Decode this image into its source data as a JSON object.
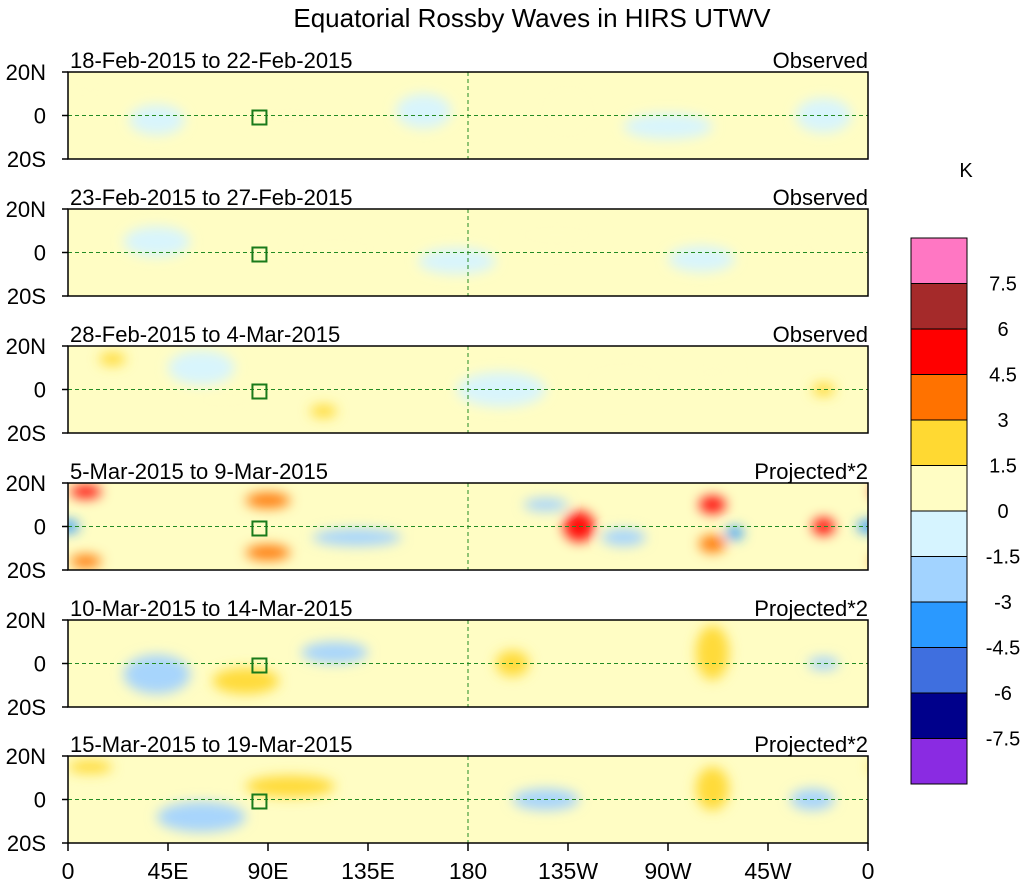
{
  "chart_data": {
    "type": "heatmap",
    "title": "Equatorial Rossby Waves in HIRS UTWV",
    "unit": "K",
    "x_ticks": [
      "0",
      "45E",
      "90E",
      "135E",
      "180",
      "135W",
      "90W",
      "45W",
      "0"
    ],
    "y_ticks": [
      "20N",
      "0",
      "20S"
    ],
    "lon_range": [
      0,
      360
    ],
    "lat_range": [
      -20,
      20
    ],
    "panels": [
      {
        "date_label": "18-Feb-2015 to 22-Feb-2015",
        "kind": "Observed"
      },
      {
        "date_label": "23-Feb-2015 to 27-Feb-2015",
        "kind": "Observed"
      },
      {
        "date_label": "28-Feb-2015 to 4-Mar-2015",
        "kind": "Observed"
      },
      {
        "date_label": "5-Mar-2015 to 9-Mar-2015",
        "kind": "Projected*2"
      },
      {
        "date_label": "10-Mar-2015 to 14-Mar-2015",
        "kind": "Projected*2"
      },
      {
        "date_label": "15-Mar-2015 to 19-Mar-2015",
        "kind": "Projected*2"
      }
    ],
    "colorbar": {
      "levels": [
        "7.5",
        "6",
        "4.5",
        "3",
        "1.5",
        "0",
        "-1.5",
        "-3",
        "-4.5",
        "-6",
        "-7.5"
      ],
      "colors": [
        "#ff77c3",
        "#a52a2a",
        "#ff0000",
        "#ff7200",
        "#ffd932",
        "#fffdc4",
        "#d6f4ff",
        "#a2d3ff",
        "#2a99ff",
        "#3f6fdf",
        "#00008b",
        "#8a2be2"
      ]
    },
    "anomalies": [
      [
        {
          "lon": 10,
          "lat": 12,
          "w": 30,
          "h": 8,
          "v": 0.8
        },
        {
          "lon": 100,
          "lat": 0,
          "w": 45,
          "h": 12,
          "v": 0.8
        },
        {
          "lon": 225,
          "lat": 2,
          "w": 30,
          "h": 30,
          "v": 0.7
        },
        {
          "lon": 160,
          "lat": 2,
          "w": 25,
          "h": 16,
          "v": -0.8
        },
        {
          "lon": 40,
          "lat": -2,
          "w": 25,
          "h": 14,
          "v": -0.8
        },
        {
          "lon": 270,
          "lat": -5,
          "w": 40,
          "h": 12,
          "v": -0.7
        },
        {
          "lon": 340,
          "lat": 0,
          "w": 25,
          "h": 16,
          "v": -0.7
        }
      ],
      [
        {
          "lon": 120,
          "lat": 2,
          "w": 40,
          "h": 14,
          "v": 0.8
        },
        {
          "lon": 220,
          "lat": 8,
          "w": 40,
          "h": 14,
          "v": 0.7
        },
        {
          "lon": 330,
          "lat": 0,
          "w": 20,
          "h": 14,
          "v": 0.8
        },
        {
          "lon": 40,
          "lat": 5,
          "w": 30,
          "h": 14,
          "v": -0.8
        },
        {
          "lon": 175,
          "lat": -4,
          "w": 35,
          "h": 12,
          "v": -0.8
        },
        {
          "lon": 285,
          "lat": -3,
          "w": 30,
          "h": 12,
          "v": -0.8
        }
      ],
      [
        {
          "lon": 20,
          "lat": 14,
          "w": 12,
          "h": 6,
          "v": 1.6
        },
        {
          "lon": 115,
          "lat": -10,
          "w": 12,
          "h": 6,
          "v": 1.6
        },
        {
          "lon": 340,
          "lat": 0,
          "w": 10,
          "h": 6,
          "v": 2.2
        },
        {
          "lon": 60,
          "lat": 10,
          "w": 30,
          "h": 16,
          "v": -0.8
        },
        {
          "lon": 70,
          "lat": -5,
          "w": 30,
          "h": 12,
          "v": 0.9
        },
        {
          "lon": 195,
          "lat": 0,
          "w": 40,
          "h": 16,
          "v": -0.9
        },
        {
          "lon": 250,
          "lat": 5,
          "w": 40,
          "h": 20,
          "v": 0.7
        },
        {
          "lon": 290,
          "lat": 8,
          "w": 20,
          "h": 10,
          "v": 0.9
        }
      ],
      [
        {
          "lon": 8,
          "lat": 16,
          "w": 14,
          "h": 6,
          "v": 4.5
        },
        {
          "lon": 8,
          "lat": -16,
          "w": 14,
          "h": 6,
          "v": 4.0
        },
        {
          "lon": 90,
          "lat": 12,
          "w": 20,
          "h": 7,
          "v": 4.0
        },
        {
          "lon": 90,
          "lat": -12,
          "w": 20,
          "h": 7,
          "v": 4.0
        },
        {
          "lon": 230,
          "lat": 0,
          "w": 14,
          "h": 14,
          "v": 5.0
        },
        {
          "lon": 290,
          "lat": 10,
          "w": 12,
          "h": 8,
          "v": 4.5
        },
        {
          "lon": 290,
          "lat": -8,
          "w": 12,
          "h": 8,
          "v": 4.0
        },
        {
          "lon": 340,
          "lat": 0,
          "w": 10,
          "h": 8,
          "v": 4.5
        },
        {
          "lon": 0,
          "lat": 0,
          "w": 10,
          "h": 6,
          "v": -4.0
        },
        {
          "lon": 300,
          "lat": -3,
          "w": 8,
          "h": 6,
          "v": -4.0
        },
        {
          "lon": 130,
          "lat": -5,
          "w": 40,
          "h": 8,
          "v": -2.2
        },
        {
          "lon": 215,
          "lat": 10,
          "w": 20,
          "h": 6,
          "v": -2.2
        },
        {
          "lon": 250,
          "lat": -5,
          "w": 20,
          "h": 8,
          "v": -2.2
        }
      ],
      [
        {
          "lon": 80,
          "lat": -8,
          "w": 30,
          "h": 12,
          "v": 2.2
        },
        {
          "lon": 200,
          "lat": 0,
          "w": 15,
          "h": 12,
          "v": 2.2
        },
        {
          "lon": 290,
          "lat": 5,
          "w": 15,
          "h": 25,
          "v": 2.5
        },
        {
          "lon": 40,
          "lat": -5,
          "w": 30,
          "h": 18,
          "v": -2.2
        },
        {
          "lon": 120,
          "lat": 5,
          "w": 30,
          "h": 10,
          "v": -2.2
        },
        {
          "lon": 340,
          "lat": 0,
          "w": 14,
          "h": 6,
          "v": -2.2
        }
      ],
      [
        {
          "lon": 10,
          "lat": 15,
          "w": 20,
          "h": 6,
          "v": 2.0
        },
        {
          "lon": 100,
          "lat": 6,
          "w": 40,
          "h": 10,
          "v": 2.0
        },
        {
          "lon": 290,
          "lat": 5,
          "w": 15,
          "h": 20,
          "v": 2.0
        },
        {
          "lon": 60,
          "lat": -8,
          "w": 40,
          "h": 14,
          "v": -2.2
        },
        {
          "lon": 215,
          "lat": 0,
          "w": 30,
          "h": 10,
          "v": -2.2
        },
        {
          "lon": 335,
          "lat": 0,
          "w": 20,
          "h": 10,
          "v": -2.2
        }
      ]
    ]
  }
}
